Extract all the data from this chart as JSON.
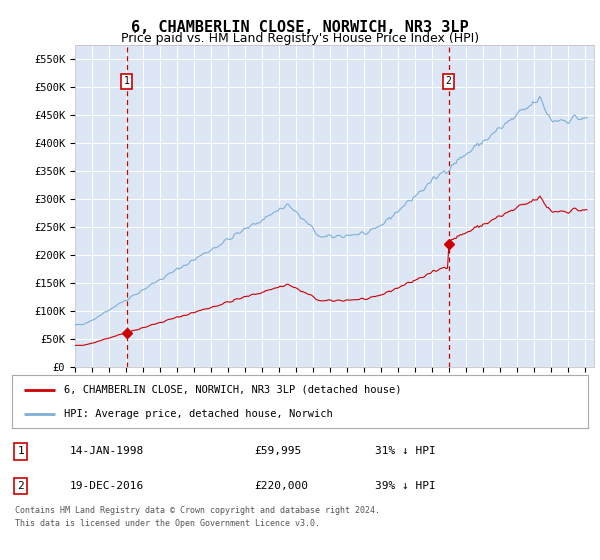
{
  "title": "6, CHAMBERLIN CLOSE, NORWICH, NR3 3LP",
  "subtitle": "Price paid vs. HM Land Registry's House Price Index (HPI)",
  "ylim": [
    0,
    575000
  ],
  "yticks": [
    0,
    50000,
    100000,
    150000,
    200000,
    250000,
    300000,
    350000,
    400000,
    450000,
    500000,
    550000
  ],
  "ytick_labels": [
    "£0",
    "£50K",
    "£100K",
    "£150K",
    "£200K",
    "£250K",
    "£300K",
    "£350K",
    "£400K",
    "£450K",
    "£500K",
    "£550K"
  ],
  "background_color": "#ffffff",
  "plot_bg_color": "#dce6f5",
  "grid_color": "#ffffff",
  "hpi_color": "#7fafd4",
  "price_color": "#cc0000",
  "vline_color": "#cc0000",
  "purchase1_year": 1998.04,
  "purchase1_price": 59995,
  "purchase1_label": "1",
  "purchase2_year": 2016.96,
  "purchase2_price": 220000,
  "purchase2_label": "2",
  "legend_line1": "6, CHAMBERLIN CLOSE, NORWICH, NR3 3LP (detached house)",
  "legend_line2": "HPI: Average price, detached house, Norwich",
  "table_row1": [
    "1",
    "14-JAN-1998",
    "£59,995",
    "31% ↓ HPI"
  ],
  "table_row2": [
    "2",
    "19-DEC-2016",
    "£220,000",
    "39% ↓ HPI"
  ],
  "footnote": "Contains HM Land Registry data © Crown copyright and database right 2024.\nThis data is licensed under the Open Government Licence v3.0.",
  "title_fontsize": 11,
  "subtitle_fontsize": 9
}
